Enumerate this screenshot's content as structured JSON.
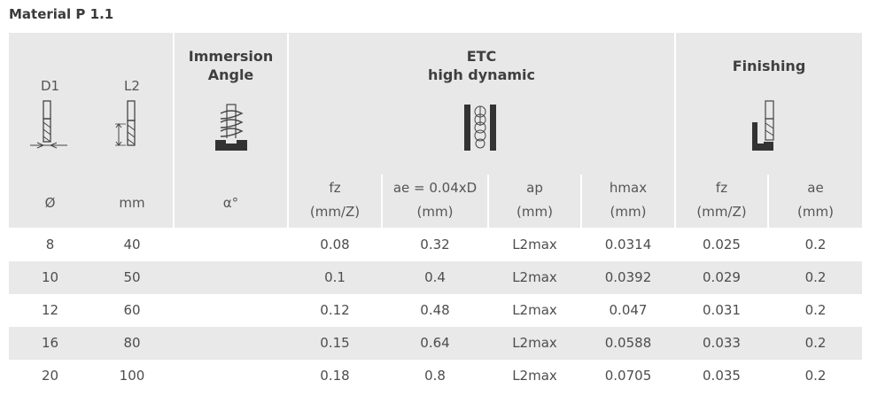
{
  "title": "Material P 1.1",
  "groups": {
    "immersion": "Immersion\nAngle",
    "etc_line1": "ETC",
    "etc_line2": "high dynamic",
    "finishing": "Finishing"
  },
  "col_labels": {
    "d1": "D1",
    "l2": "L2"
  },
  "units": {
    "d1": "Ø",
    "l2": "mm",
    "angle": "α°",
    "fz1": "fz\n(mm/Z)",
    "ae1": "ae = 0.04xD\n(mm)",
    "ap": "ap\n(mm)",
    "hmax": "hmax\n(mm)",
    "fz2": "fz\n(mm/Z)",
    "ae2": "ae\n(mm)"
  },
  "icons": {
    "d1": "end-mill-diameter-icon",
    "l2": "end-mill-length-icon",
    "angle": "helix-immersion-icon",
    "etc": "slot-milling-icon",
    "finishing": "side-finishing-icon"
  },
  "rows": [
    [
      "8",
      "40",
      "",
      "0.08",
      "0.32",
      "L2max",
      "0.0314",
      "0.025",
      "0.2"
    ],
    [
      "10",
      "50",
      "",
      "0.1",
      "0.4",
      "L2max",
      "0.0392",
      "0.029",
      "0.2"
    ],
    [
      "12",
      "60",
      "",
      "0.12",
      "0.48",
      "L2max",
      "0.047",
      "0.031",
      "0.2"
    ],
    [
      "16",
      "80",
      "",
      "0.15",
      "0.64",
      "L2max",
      "0.0588",
      "0.033",
      "0.2"
    ],
    [
      "20",
      "100",
      "",
      "0.18",
      "0.8",
      "L2max",
      "0.0705",
      "0.035",
      "0.2"
    ]
  ]
}
